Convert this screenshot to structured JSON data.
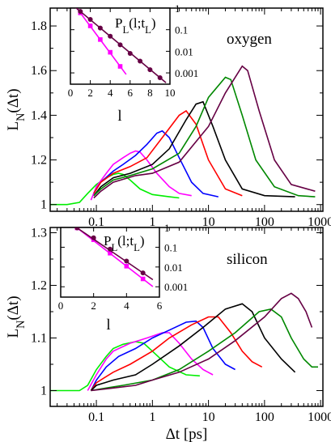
{
  "chart_data": [
    {
      "type": "line",
      "label": "oxygen",
      "ylabel": "L_N(Δt)",
      "xlabel": "",
      "xscale": "log",
      "xlim": [
        0.015,
        1100
      ],
      "ylim": [
        0.97,
        1.88
      ],
      "xticks": [
        {
          "v": 0.1,
          "label": "0.1"
        },
        {
          "v": 1,
          "label": "1"
        },
        {
          "v": 10,
          "label": "10"
        },
        {
          "v": 100,
          "label": "100"
        },
        {
          "v": 1000,
          "label": "1000"
        }
      ],
      "yticks": [
        {
          "v": 1.0,
          "label": "1"
        },
        {
          "v": 1.2,
          "label": "1.2"
        },
        {
          "v": 1.4,
          "label": "1.4"
        },
        {
          "v": 1.6,
          "label": "1.6"
        },
        {
          "v": 1.8,
          "label": "1.8"
        }
      ],
      "series": [
        {
          "color": "#00ee00",
          "points": [
            [
              0.015,
              1.0
            ],
            [
              0.03,
              1.0
            ],
            [
              0.05,
              1.01
            ],
            [
              0.07,
              1.05
            ],
            [
              0.1,
              1.09
            ],
            [
              0.15,
              1.12
            ],
            [
              0.2,
              1.135
            ],
            [
              0.25,
              1.14
            ],
            [
              0.3,
              1.135
            ],
            [
              0.4,
              1.11
            ],
            [
              0.6,
              1.07
            ],
            [
              1,
              1.045
            ],
            [
              2,
              1.035
            ],
            [
              3,
              1.03
            ]
          ]
        },
        {
          "color": "#ff00ff",
          "points": [
            [
              0.08,
              1.02
            ],
            [
              0.1,
              1.08
            ],
            [
              0.15,
              1.14
            ],
            [
              0.2,
              1.18
            ],
            [
              0.3,
              1.21
            ],
            [
              0.4,
              1.23
            ],
            [
              0.5,
              1.24
            ],
            [
              0.6,
              1.235
            ],
            [
              0.8,
              1.2
            ],
            [
              1.2,
              1.14
            ],
            [
              2,
              1.08
            ],
            [
              3,
              1.05
            ],
            [
              5,
              1.04
            ]
          ]
        },
        {
          "color": "#0000ff",
          "points": [
            [
              0.09,
              1.05
            ],
            [
              0.12,
              1.1
            ],
            [
              0.2,
              1.15
            ],
            [
              0.3,
              1.18
            ],
            [
              0.5,
              1.22
            ],
            [
              0.8,
              1.27
            ],
            [
              1.2,
              1.32
            ],
            [
              1.5,
              1.33
            ],
            [
              2,
              1.3
            ],
            [
              3,
              1.21
            ],
            [
              5,
              1.1
            ],
            [
              8,
              1.05
            ],
            [
              15,
              1.035
            ]
          ]
        },
        {
          "color": "#ff0000",
          "points": [
            [
              0.09,
              1.05
            ],
            [
              0.12,
              1.1
            ],
            [
              0.2,
              1.14
            ],
            [
              0.4,
              1.17
            ],
            [
              0.8,
              1.21
            ],
            [
              1.5,
              1.3
            ],
            [
              3,
              1.4
            ],
            [
              4,
              1.42
            ],
            [
              6,
              1.36
            ],
            [
              10,
              1.2
            ],
            [
              20,
              1.07
            ],
            [
              40,
              1.04
            ]
          ]
        },
        {
          "color": "#000000",
          "points": [
            [
              0.09,
              1.04
            ],
            [
              0.12,
              1.08
            ],
            [
              0.2,
              1.12
            ],
            [
              0.4,
              1.14
            ],
            [
              1,
              1.18
            ],
            [
              2,
              1.25
            ],
            [
              4,
              1.38
            ],
            [
              6,
              1.45
            ],
            [
              8,
              1.46
            ],
            [
              12,
              1.35
            ],
            [
              20,
              1.2
            ],
            [
              40,
              1.07
            ],
            [
              100,
              1.04
            ],
            [
              350,
              1.035
            ]
          ]
        },
        {
          "color": "#008800",
          "points": [
            [
              0.09,
              1.04
            ],
            [
              0.12,
              1.07
            ],
            [
              0.2,
              1.11
            ],
            [
              0.4,
              1.13
            ],
            [
              1,
              1.16
            ],
            [
              3,
              1.23
            ],
            [
              6,
              1.35
            ],
            [
              10,
              1.48
            ],
            [
              20,
              1.57
            ],
            [
              25,
              1.56
            ],
            [
              40,
              1.4
            ],
            [
              70,
              1.2
            ],
            [
              150,
              1.08
            ],
            [
              400,
              1.04
            ],
            [
              800,
              1.035
            ]
          ]
        },
        {
          "color": "#660044",
          "points": [
            [
              0.09,
              1.03
            ],
            [
              0.12,
              1.06
            ],
            [
              0.2,
              1.1
            ],
            [
              0.5,
              1.13
            ],
            [
              1,
              1.14
            ],
            [
              3,
              1.19
            ],
            [
              10,
              1.35
            ],
            [
              20,
              1.5
            ],
            [
              40,
              1.62
            ],
            [
              50,
              1.6
            ],
            [
              80,
              1.42
            ],
            [
              150,
              1.2
            ],
            [
              300,
              1.09
            ],
            [
              800,
              1.06
            ]
          ]
        }
      ],
      "inset": {
        "title": "P_L(l;t_L)",
        "xlabel": "l",
        "xlim": [
          0,
          10
        ],
        "xticks": [
          0,
          2,
          4,
          6,
          8,
          10
        ],
        "ylim_log": [
          0.0003,
          1
        ],
        "yticks": [
          {
            "v": 1,
            "label": "1"
          },
          {
            "v": 0.1,
            "label": "0.1"
          },
          {
            "v": 0.01,
            "label": "0.01"
          },
          {
            "v": 0.001,
            "label": "0.001"
          }
        ],
        "series": [
          {
            "color": "#ff00ff",
            "lines": true,
            "x": [
              1,
              2,
              3,
              4,
              5
            ],
            "y": [
              0.6,
              0.15,
              0.035,
              0.009,
              0.002
            ]
          },
          {
            "color": "#660044",
            "lines": true,
            "x": [
              1,
              2,
              3,
              4,
              5,
              6,
              7,
              8,
              9
            ],
            "y": [
              0.7,
              0.3,
              0.12,
              0.05,
              0.02,
              0.008,
              0.0035,
              0.0014,
              0.0006
            ]
          }
        ]
      }
    },
    {
      "type": "line",
      "label": "silicon",
      "ylabel": "L_N(Δt)",
      "xlabel": "Δt [ps]",
      "xscale": "log",
      "xlim": [
        0.015,
        1100
      ],
      "ylim": [
        0.97,
        1.31
      ],
      "xticks": [
        {
          "v": 0.1,
          "label": "0.1"
        },
        {
          "v": 1,
          "label": "1"
        },
        {
          "v": 10,
          "label": "10"
        },
        {
          "v": 100,
          "label": "100"
        },
        {
          "v": 1000,
          "label": "1000"
        }
      ],
      "yticks": [
        {
          "v": 1.0,
          "label": "1"
        },
        {
          "v": 1.1,
          "label": "1.1"
        },
        {
          "v": 1.2,
          "label": "1.2"
        },
        {
          "v": 1.3,
          "label": "1.3"
        }
      ],
      "series": [
        {
          "color": "#00ee00",
          "points": [
            [
              0.015,
              1.0
            ],
            [
              0.05,
              1.0
            ],
            [
              0.07,
              1.01
            ],
            [
              0.1,
              1.04
            ],
            [
              0.15,
              1.065
            ],
            [
              0.2,
              1.08
            ],
            [
              0.3,
              1.088
            ],
            [
              0.5,
              1.093
            ],
            [
              0.7,
              1.09
            ],
            [
              1,
              1.075
            ],
            [
              2,
              1.045
            ],
            [
              4,
              1.03
            ],
            [
              7,
              1.028
            ]
          ]
        },
        {
          "color": "#ff00ff",
          "points": [
            [
              0.07,
              1.0
            ],
            [
              0.1,
              1.03
            ],
            [
              0.15,
              1.06
            ],
            [
              0.2,
              1.075
            ],
            [
              0.4,
              1.09
            ],
            [
              0.8,
              1.1
            ],
            [
              1.5,
              1.11
            ],
            [
              2,
              1.11
            ],
            [
              3,
              1.09
            ],
            [
              5,
              1.06
            ],
            [
              8,
              1.04
            ],
            [
              12,
              1.03
            ]
          ]
        },
        {
          "color": "#0000ff",
          "points": [
            [
              0.08,
              1.0
            ],
            [
              0.1,
              1.02
            ],
            [
              0.15,
              1.045
            ],
            [
              0.25,
              1.065
            ],
            [
              0.5,
              1.08
            ],
            [
              1,
              1.1
            ],
            [
              2,
              1.115
            ],
            [
              4,
              1.13
            ],
            [
              6,
              1.132
            ],
            [
              8,
              1.12
            ],
            [
              12,
              1.08
            ],
            [
              20,
              1.05
            ],
            [
              30,
              1.04
            ]
          ]
        },
        {
          "color": "#ff0000",
          "points": [
            [
              0.08,
              1.0
            ],
            [
              0.1,
              1.015
            ],
            [
              0.2,
              1.035
            ],
            [
              0.4,
              1.05
            ],
            [
              1,
              1.075
            ],
            [
              2,
              1.1
            ],
            [
              5,
              1.125
            ],
            [
              10,
              1.14
            ],
            [
              15,
              1.14
            ],
            [
              25,
              1.11
            ],
            [
              40,
              1.075
            ],
            [
              60,
              1.055
            ],
            [
              90,
              1.045
            ]
          ]
        },
        {
          "color": "#000000",
          "points": [
            [
              0.08,
              1.0
            ],
            [
              0.1,
              1.01
            ],
            [
              0.2,
              1.02
            ],
            [
              0.5,
              1.03
            ],
            [
              1,
              1.05
            ],
            [
              3,
              1.085
            ],
            [
              8,
              1.12
            ],
            [
              20,
              1.155
            ],
            [
              40,
              1.165
            ],
            [
              60,
              1.15
            ],
            [
              100,
              1.1
            ],
            [
              200,
              1.06
            ],
            [
              350,
              1.035
            ]
          ]
        },
        {
          "color": "#008800",
          "points": [
            [
              0.08,
              1.0
            ],
            [
              0.15,
              1.005
            ],
            [
              0.3,
              1.01
            ],
            [
              1,
              1.02
            ],
            [
              3,
              1.04
            ],
            [
              10,
              1.075
            ],
            [
              30,
              1.11
            ],
            [
              80,
              1.15
            ],
            [
              130,
              1.155
            ],
            [
              200,
              1.14
            ],
            [
              300,
              1.1
            ],
            [
              500,
              1.06
            ],
            [
              700,
              1.045
            ],
            [
              900,
              1.045
            ]
          ]
        },
        {
          "color": "#660044",
          "points": [
            [
              0.08,
              1.0
            ],
            [
              0.2,
              1.005
            ],
            [
              0.5,
              1.01
            ],
            [
              1,
              1.02
            ],
            [
              3,
              1.035
            ],
            [
              10,
              1.06
            ],
            [
              30,
              1.095
            ],
            [
              100,
              1.14
            ],
            [
              200,
              1.175
            ],
            [
              300,
              1.185
            ],
            [
              400,
              1.175
            ],
            [
              550,
              1.15
            ],
            [
              700,
              1.12
            ]
          ]
        }
      ],
      "inset": {
        "title": "P_L(l;t_L)",
        "xlabel": "l",
        "xlim": [
          0,
          6
        ],
        "xticks": [
          0,
          2,
          4,
          6
        ],
        "ylim_log": [
          0.0003,
          1
        ],
        "yticks": [
          {
            "v": 1,
            "label": "1"
          },
          {
            "v": 0.1,
            "label": "0.1"
          },
          {
            "v": 0.01,
            "label": "0.01"
          },
          {
            "v": 0.001,
            "label": "0.001"
          }
        ],
        "series": [
          {
            "color": "#ff00ff",
            "lines": true,
            "x": [
              1,
              2,
              3,
              4,
              5
            ],
            "y": [
              0.95,
              0.24,
              0.05,
              0.011,
              0.0025
            ]
          },
          {
            "color": "#660044",
            "lines": true,
            "x": [
              1,
              2,
              3,
              4,
              5
            ],
            "y": [
              0.95,
              0.3,
              0.08,
              0.02,
              0.005
            ]
          }
        ]
      }
    }
  ]
}
